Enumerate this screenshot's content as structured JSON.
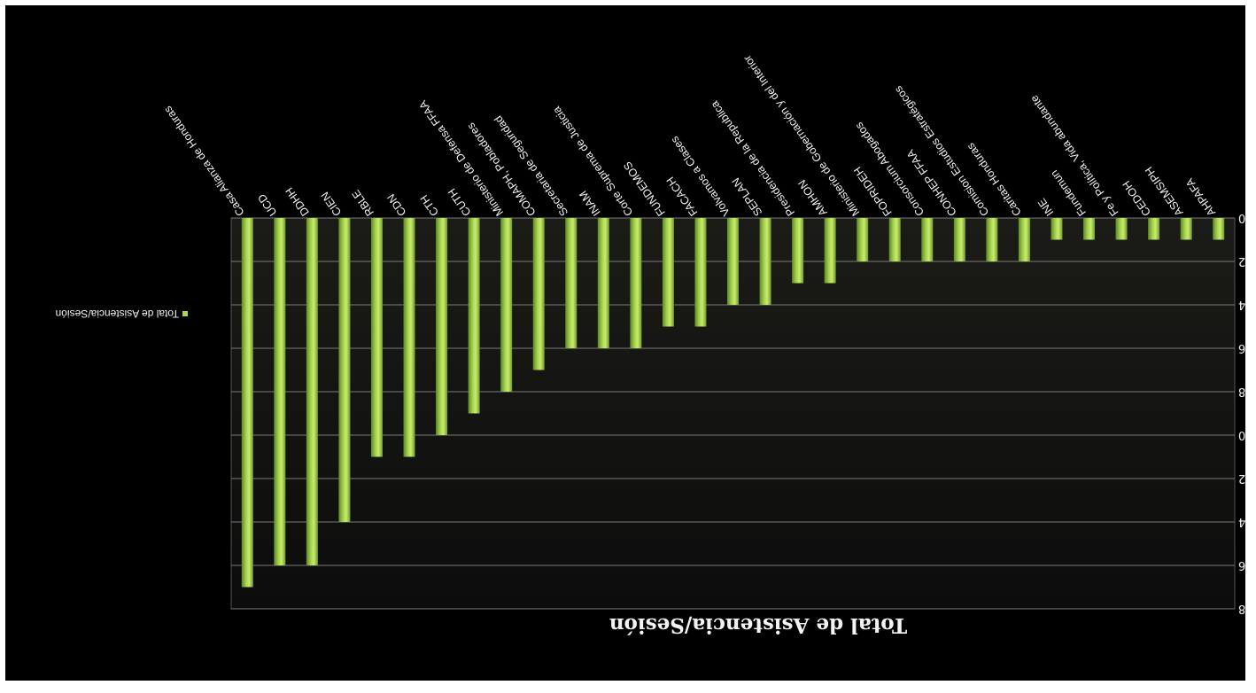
{
  "chart_data": {
    "type": "bar",
    "title": "Total de Asistencia/Sesión",
    "legend": [
      "Total de Asistencia/Sesión"
    ],
    "orientation": "rotated-180",
    "categories": [
      "Casa Alianza de Honduras",
      "UCD",
      "DDHH",
      "CIEN",
      "RBLE",
      "CDN",
      "CTH",
      "CUTH",
      "Ministerio de Defensa FFAA",
      "COMAPH, Pobladores",
      "Secretaria de Seguridad",
      "INAM",
      "Corte Suprema de Justicia",
      "FUNDEMOS",
      "FACACH",
      "Volvamos a Clases",
      "SEPLAN",
      "Presidencia de la Republica",
      "AMHON",
      "Ministerio de Gobernación y del Interior",
      "FOPRIDEH",
      "Consorcium Abogados",
      "CONHEP FFAA",
      "Comision Estudios Estratégicos",
      "Caritas Honduras",
      "INE",
      "Fundemun",
      "Fe y Política, Vida abundante",
      "CEDOH",
      "ASEMSIPH",
      "AHPAFA"
    ],
    "values": [
      17,
      16,
      16,
      14,
      11,
      11,
      10,
      9,
      8,
      7,
      6,
      6,
      6,
      5,
      5,
      4,
      4,
      3,
      3,
      2,
      2,
      2,
      2,
      2,
      2,
      1,
      1,
      1,
      1,
      1,
      1
    ],
    "ylim": [
      0,
      18
    ],
    "yticks": [
      "0",
      "2",
      "4",
      "6",
      "8",
      "10",
      "12",
      "14",
      "16",
      "18"
    ],
    "grid": true,
    "bar_color": "#a8d450"
  }
}
